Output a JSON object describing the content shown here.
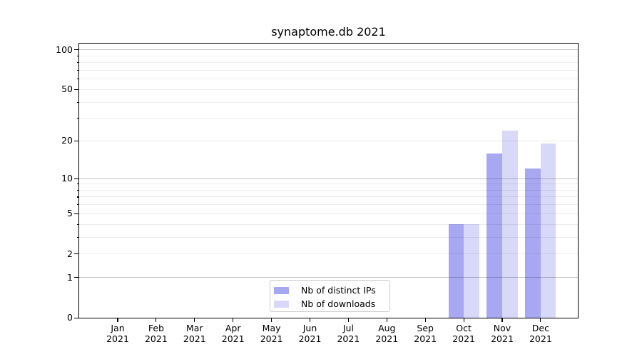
{
  "chart_data": {
    "type": "bar",
    "title": "synaptome.db 2021",
    "categories": [
      "Jan",
      "Feb",
      "Mar",
      "Apr",
      "May",
      "Jun",
      "Jul",
      "Aug",
      "Sep",
      "Oct",
      "Nov",
      "Dec"
    ],
    "category_year": "2021",
    "series": [
      {
        "name": "Nb of distinct IPs",
        "color": "#a8a8f2",
        "values": [
          0,
          0,
          0,
          0,
          0,
          0,
          0,
          0,
          0,
          4,
          16,
          12
        ]
      },
      {
        "name": "Nb of downloads",
        "color": "#d8d8f8",
        "values": [
          0,
          0,
          0,
          0,
          0,
          0,
          0,
          0,
          0,
          4,
          24,
          19
        ]
      }
    ],
    "xlabel": "",
    "ylabel": "",
    "yscale": "log1p",
    "ylim": [
      0,
      112
    ],
    "yticks": [
      0,
      1,
      2,
      5,
      10,
      20,
      50,
      100
    ],
    "grid": {
      "major_values": [
        1,
        10,
        100
      ],
      "minor_values": [
        2,
        3,
        4,
        5,
        6,
        7,
        8,
        9,
        20,
        30,
        40,
        50,
        60,
        70,
        80,
        90
      ],
      "major_color": "rgba(0,0,0,0.22)",
      "minor_color": "rgba(0,0,0,0.075)"
    },
    "legend_position": "lower center",
    "background_color": "#ffffff",
    "spine_color": "#000000"
  }
}
